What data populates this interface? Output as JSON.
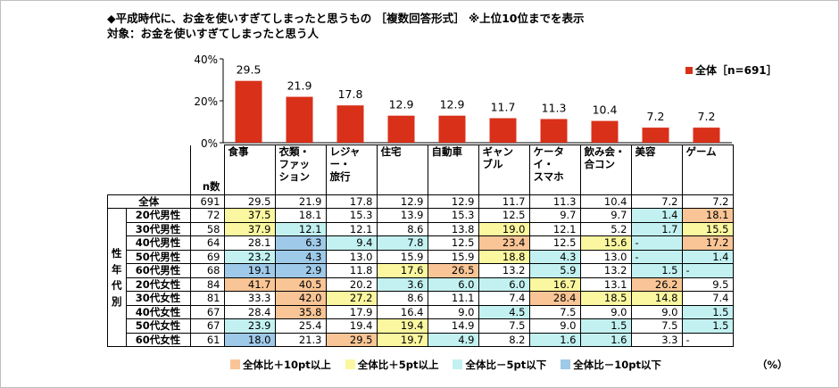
{
  "title": "◆平成時代に、お金を使いすぎてしまったと思うもの ［複数回答形式］ ※上位10位までを表示",
  "subtitle": "対象：お金を使いすぎてしまったと思う人",
  "chart_data": {
    "type": "bar",
    "categories": [
      "食事",
      "衣類・ファッション",
      "レジャー・旅行",
      "住宅",
      "自動車",
      "ギャンブル",
      "ケータイ・スマホ",
      "飲み会・合コン",
      "美容",
      "ゲーム"
    ],
    "category_lines": [
      [
        "食事"
      ],
      [
        "衣類・",
        "ファッ",
        "ション"
      ],
      [
        "レジャー・",
        "旅行"
      ],
      [
        "住宅"
      ],
      [
        "自動車"
      ],
      [
        "ギャン",
        "ブル"
      ],
      [
        "ケータイ・",
        "スマホ"
      ],
      [
        "飲み会・",
        "合コン"
      ],
      [
        "美容"
      ],
      [
        "ゲーム"
      ]
    ],
    "series": [
      {
        "name": "全体［n=691］",
        "values": [
          29.5,
          21.9,
          17.8,
          12.9,
          12.9,
          11.7,
          11.3,
          10.4,
          7.2,
          7.2
        ]
      }
    ],
    "ylim": [
      0,
      40
    ],
    "yticks": [
      "0%",
      "20%",
      "40%"
    ],
    "bar_color": "#d9301a",
    "grid": false,
    "legend_position": "top-right"
  },
  "table": {
    "n_label": "n数",
    "group_label": [
      "性",
      "年",
      "代",
      "別"
    ],
    "rows": [
      {
        "label": "全体",
        "n": "691",
        "values": [
          "29.5",
          "21.9",
          "17.8",
          "12.9",
          "12.9",
          "11.7",
          "11.3",
          "10.4",
          "7.2",
          "7.2"
        ],
        "hl": [
          "",
          "",
          "",
          "",
          "",
          "",
          "",
          "",
          "",
          ""
        ]
      },
      {
        "label": "20代男性",
        "n": "72",
        "values": [
          "37.5",
          "18.1",
          "15.3",
          "13.9",
          "15.3",
          "12.5",
          "9.7",
          "9.7",
          "1.4",
          "18.1"
        ],
        "hl": [
          "hl5",
          "",
          "",
          "",
          "",
          "",
          "",
          "",
          "lo5",
          "hl10"
        ]
      },
      {
        "label": "30代男性",
        "n": "58",
        "values": [
          "37.9",
          "12.1",
          "12.1",
          "8.6",
          "13.8",
          "19.0",
          "12.1",
          "5.2",
          "1.7",
          "15.5"
        ],
        "hl": [
          "hl5",
          "lo5",
          "",
          "",
          "",
          "hl5",
          "",
          "",
          "lo5",
          "hl5"
        ]
      },
      {
        "label": "40代男性",
        "n": "64",
        "values": [
          "28.1",
          "6.3",
          "9.4",
          "7.8",
          "12.5",
          "23.4",
          "12.5",
          "15.6",
          "-",
          "17.2"
        ],
        "hl": [
          "",
          "lo10",
          "lo5",
          "lo5",
          "",
          "hl10",
          "",
          "hl5",
          "lo5",
          "hl10"
        ]
      },
      {
        "label": "50代男性",
        "n": "69",
        "values": [
          "23.2",
          "4.3",
          "13.0",
          "15.9",
          "15.9",
          "18.8",
          "4.3",
          "13.0",
          "-",
          "1.4"
        ],
        "hl": [
          "lo5",
          "lo10",
          "",
          "",
          "",
          "hl5",
          "lo5",
          "",
          "lo5",
          "lo5"
        ]
      },
      {
        "label": "60代男性",
        "n": "68",
        "values": [
          "19.1",
          "2.9",
          "11.8",
          "17.6",
          "26.5",
          "13.2",
          "5.9",
          "13.2",
          "1.5",
          "-"
        ],
        "hl": [
          "lo10",
          "lo10",
          "",
          "hl5",
          "hl10",
          "",
          "lo5",
          "",
          "lo5",
          "lo5"
        ]
      },
      {
        "label": "20代女性",
        "n": "84",
        "values": [
          "41.7",
          "40.5",
          "20.2",
          "3.6",
          "6.0",
          "6.0",
          "16.7",
          "13.1",
          "26.2",
          "9.5"
        ],
        "hl": [
          "hl10",
          "hl10",
          "",
          "lo5",
          "lo5",
          "lo5",
          "hl5",
          "",
          "hl10",
          ""
        ]
      },
      {
        "label": "30代女性",
        "n": "81",
        "values": [
          "33.3",
          "42.0",
          "27.2",
          "8.6",
          "11.1",
          "7.4",
          "28.4",
          "18.5",
          "14.8",
          "7.4"
        ],
        "hl": [
          "",
          "hl10",
          "hl5",
          "",
          "",
          "",
          "hl10",
          "hl5",
          "hl5",
          ""
        ]
      },
      {
        "label": "40代女性",
        "n": "67",
        "values": [
          "28.4",
          "35.8",
          "17.9",
          "16.4",
          "9.0",
          "4.5",
          "7.5",
          "9.0",
          "9.0",
          "1.5"
        ],
        "hl": [
          "",
          "hl10",
          "",
          "",
          "",
          "lo5",
          "",
          "",
          "",
          "lo5"
        ]
      },
      {
        "label": "50代女性",
        "n": "67",
        "values": [
          "23.9",
          "25.4",
          "19.4",
          "19.4",
          "14.9",
          "7.5",
          "9.0",
          "1.5",
          "7.5",
          "1.5"
        ],
        "hl": [
          "lo5",
          "",
          "",
          "hl5",
          "",
          "",
          "",
          "lo5",
          "",
          "lo5"
        ]
      },
      {
        "label": "60代女性",
        "n": "61",
        "values": [
          "18.0",
          "21.3",
          "29.5",
          "19.7",
          "4.9",
          "8.2",
          "1.6",
          "1.6",
          "3.3",
          "-"
        ],
        "hl": [
          "lo10",
          "",
          "hl10",
          "hl5",
          "lo5",
          "",
          "lo5",
          "lo5",
          "",
          ""
        ]
      }
    ]
  },
  "legend": [
    {
      "label": "全体比＋10pt以上",
      "color": "#f9c596"
    },
    {
      "label": "全体比＋5pt以上",
      "color": "#fbf7a0"
    },
    {
      "label": "全体比－5pt以下",
      "color": "#c3f1f1"
    },
    {
      "label": "全体比－10pt以下",
      "color": "#9fc9e8"
    }
  ],
  "unit": "（%）"
}
